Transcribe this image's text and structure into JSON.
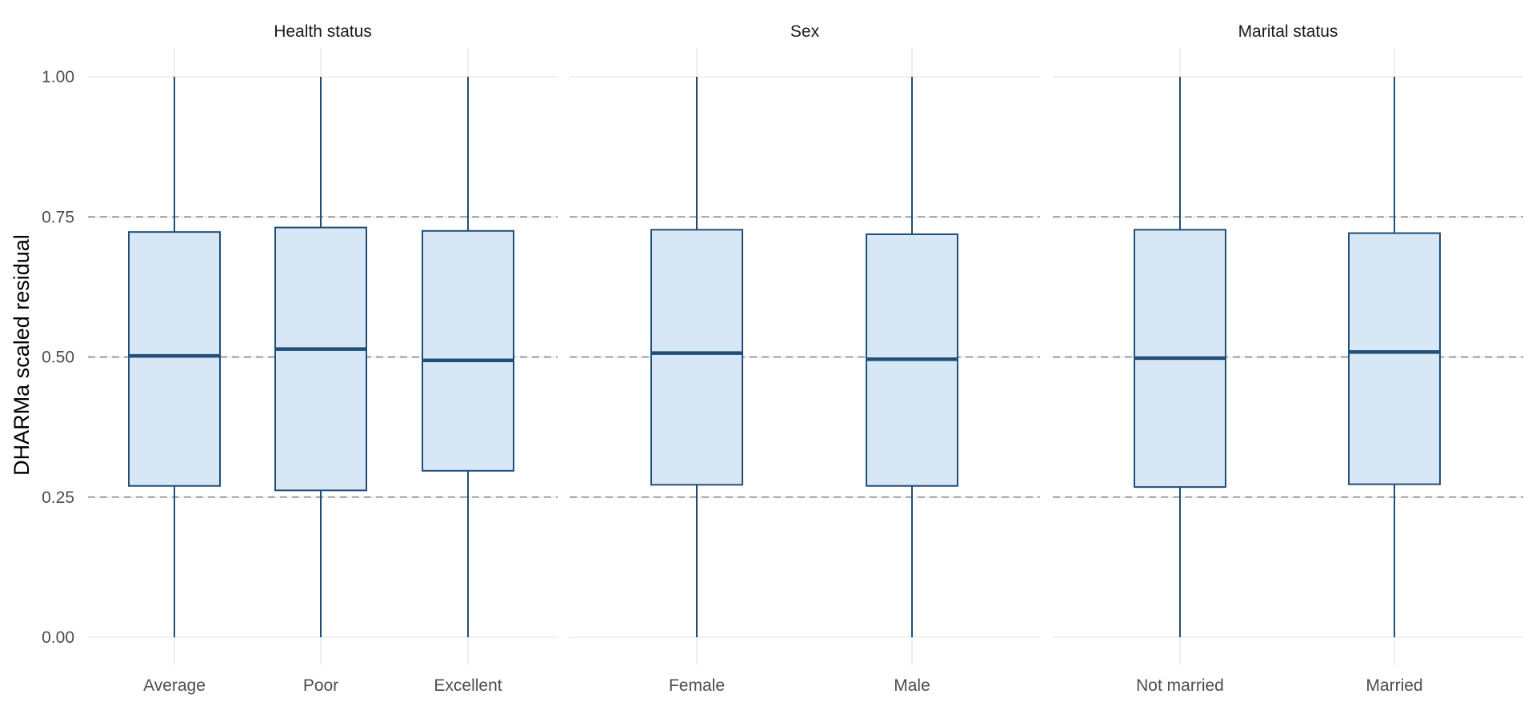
{
  "chart_data": {
    "type": "boxplot",
    "ylabel": "DHARMa scaled residual",
    "xlabel": "",
    "title": "",
    "ylim": [
      0,
      1
    ],
    "yticks": [
      0,
      0.25,
      0.5,
      0.75,
      1
    ],
    "ytick_labels": [
      "0.00",
      "0.25",
      "0.50",
      "0.75",
      "1.00"
    ],
    "reference_lines": [
      0.25,
      0.5,
      0.75
    ],
    "grid": true,
    "colors": {
      "fill": "#d8e7f5",
      "stroke": "#1f4e79",
      "grid": "#e5e5e5",
      "refline": "#7f7f7f"
    },
    "panels": [
      {
        "title": "Health status",
        "categories": [
          "Average",
          "Poor",
          "Excellent"
        ],
        "boxes": [
          {
            "min": 0.0,
            "q1": 0.27,
            "median": 0.502,
            "q3": 0.723,
            "max": 1.0
          },
          {
            "min": 0.0,
            "q1": 0.262,
            "median": 0.514,
            "q3": 0.731,
            "max": 1.0
          },
          {
            "min": 0.0,
            "q1": 0.297,
            "median": 0.494,
            "q3": 0.725,
            "max": 1.0
          }
        ]
      },
      {
        "title": "Sex",
        "categories": [
          "Female",
          "Male"
        ],
        "boxes": [
          {
            "min": 0.0,
            "q1": 0.272,
            "median": 0.507,
            "q3": 0.727,
            "max": 1.0
          },
          {
            "min": 0.0,
            "q1": 0.27,
            "median": 0.496,
            "q3": 0.719,
            "max": 1.0
          }
        ]
      },
      {
        "title": "Marital status",
        "categories": [
          "Not married",
          "Married"
        ],
        "boxes": [
          {
            "min": 0.0,
            "q1": 0.268,
            "median": 0.498,
            "q3": 0.727,
            "max": 1.0
          },
          {
            "min": 0.0,
            "q1": 0.273,
            "median": 0.509,
            "q3": 0.721,
            "max": 1.0
          }
        ]
      }
    ]
  }
}
